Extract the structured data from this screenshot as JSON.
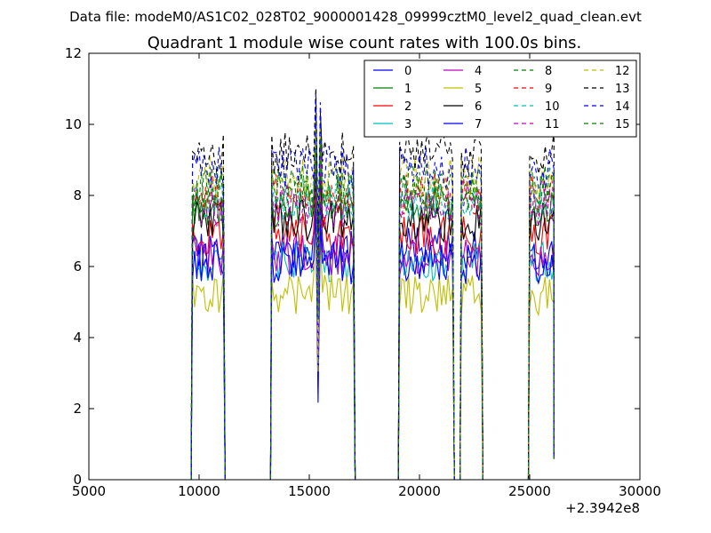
{
  "figure": {
    "supertitle": "Data file: modeM0/AS1C02_028T02_9000001428_09999cztM0_level2_quad_clean.evt"
  },
  "chart_data": {
    "type": "line",
    "title": "Quadrant 1 module wise count rates with 100.0s bins.",
    "xlabel": "",
    "ylabel": "",
    "x_offset_label": "+2.3942e8",
    "xlim": [
      5000,
      30000
    ],
    "ylim": [
      0,
      12
    ],
    "xticks": [
      5000,
      10000,
      15000,
      20000,
      25000,
      30000
    ],
    "yticks": [
      0,
      2,
      4,
      6,
      8,
      10,
      12
    ],
    "grid": false,
    "legend_position": "top-right",
    "legend_columns": 4,
    "observation_segments": [
      {
        "x_start": 9700,
        "x_end": 11100
      },
      {
        "x_start": 13300,
        "x_end": 17000
      },
      {
        "x_start": 19100,
        "x_end": 21500
      },
      {
        "x_start": 21900,
        "x_end": 22800
      },
      {
        "x_start": 25000,
        "x_end": 26100
      }
    ],
    "gap_level": 0,
    "dip_x": 15400,
    "series": [
      {
        "name": "0",
        "color": "#0000ff",
        "linestyle": "solid",
        "mean_rate": 6.5
      },
      {
        "name": "1",
        "color": "#008000",
        "linestyle": "solid",
        "mean_rate": 7.7
      },
      {
        "name": "2",
        "color": "#ff0000",
        "linestyle": "solid",
        "mean_rate": 6.9
      },
      {
        "name": "3",
        "color": "#00bfbf",
        "linestyle": "solid",
        "mean_rate": 6.1
      },
      {
        "name": "4",
        "color": "#bf00bf",
        "linestyle": "solid",
        "mean_rate": 6.3
      },
      {
        "name": "5",
        "color": "#bfbf00",
        "linestyle": "solid",
        "mean_rate": 5.2
      },
      {
        "name": "6",
        "color": "#000000",
        "linestyle": "solid",
        "mean_rate": 7.3
      },
      {
        "name": "7",
        "color": "#0000ff",
        "linestyle": "solid",
        "mean_rate": 6.1
      },
      {
        "name": "8",
        "color": "#008000",
        "linestyle": "dashed",
        "mean_rate": 8.3
      },
      {
        "name": "9",
        "color": "#ff0000",
        "linestyle": "dashed",
        "mean_rate": 8.0
      },
      {
        "name": "10",
        "color": "#00bfbf",
        "linestyle": "dashed",
        "mean_rate": 7.9
      },
      {
        "name": "11",
        "color": "#bf00bf",
        "linestyle": "dashed",
        "mean_rate": 7.7
      },
      {
        "name": "12",
        "color": "#bfbf00",
        "linestyle": "dashed",
        "mean_rate": 8.5
      },
      {
        "name": "13",
        "color": "#000000",
        "linestyle": "dashed",
        "mean_rate": 9.2
      },
      {
        "name": "14",
        "color": "#0000ff",
        "linestyle": "dashed",
        "mean_rate": 8.8
      },
      {
        "name": "15",
        "color": "#008000",
        "linestyle": "dashed",
        "mean_rate": 8.1
      }
    ]
  }
}
